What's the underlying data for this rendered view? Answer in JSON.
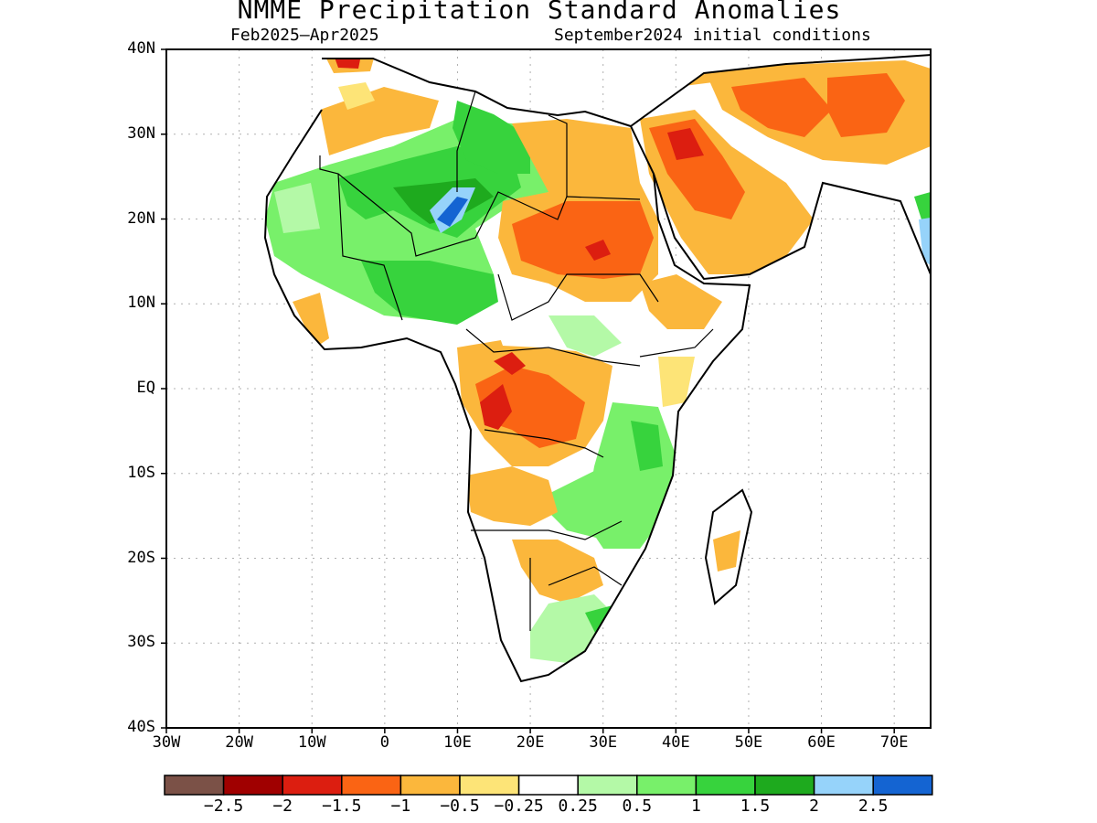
{
  "title": "NMME Precipitation Standard Anomalies",
  "subtitle_left": "Feb2025–Apr2025",
  "subtitle_right": "September2024 initial conditions",
  "lat_labels": [
    "40N",
    "30N",
    "20N",
    "10N",
    "EQ",
    "10S",
    "20S",
    "30S",
    "40S"
  ],
  "lon_labels": [
    "30W",
    "20W",
    "10W",
    "0",
    "10E",
    "20E",
    "30E",
    "40E",
    "50E",
    "60E",
    "70E"
  ],
  "colorbar": {
    "colors": [
      "#7b5147",
      "#a00000",
      "#dc1e10",
      "#fa6414",
      "#fbb73c",
      "#fde477",
      "#ffffff",
      "#b4f9a7",
      "#78f06a",
      "#37d33d",
      "#1eaa1e",
      "#96d3fa",
      "#1464d2"
    ],
    "labels": [
      "−2.5",
      "−2",
      "−1.5",
      "−1",
      "−0.5",
      "−0.25",
      "0.25",
      "0.5",
      "1",
      "1.5",
      "2",
      "2.5"
    ]
  },
  "colors": {
    "land_outline": "#000000",
    "grid": "#b0b0b0"
  }
}
